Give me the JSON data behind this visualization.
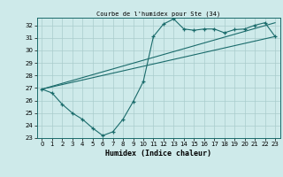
{
  "title": "Courbe de l'humidex pour Ste (34)",
  "xlabel": "Humidex (Indice chaleur)",
  "bg_color": "#ceeaea",
  "grid_color": "#aacccc",
  "line_color": "#1a6b6b",
  "xlim": [
    -0.5,
    23.5
  ],
  "ylim": [
    23,
    32.6
  ],
  "xticks": [
    0,
    1,
    2,
    3,
    4,
    5,
    6,
    7,
    8,
    9,
    10,
    11,
    12,
    13,
    14,
    15,
    16,
    17,
    18,
    19,
    20,
    21,
    22,
    23
  ],
  "yticks": [
    23,
    24,
    25,
    26,
    27,
    28,
    29,
    30,
    31,
    32
  ],
  "curve_x": [
    0,
    1,
    2,
    3,
    4,
    5,
    6,
    7,
    8,
    9,
    10,
    11,
    12,
    13,
    14,
    15,
    16,
    17,
    18,
    19,
    20,
    21,
    22,
    23
  ],
  "curve_y": [
    26.9,
    26.6,
    25.7,
    25.0,
    24.5,
    23.8,
    23.2,
    23.5,
    24.5,
    25.9,
    27.5,
    31.1,
    32.1,
    32.5,
    31.7,
    31.6,
    31.7,
    31.7,
    31.4,
    31.65,
    31.7,
    32.0,
    32.2,
    31.1
  ],
  "line1_x": [
    0,
    23
  ],
  "line1_y": [
    26.9,
    31.1
  ],
  "line2_x": [
    0,
    23
  ],
  "line2_y": [
    26.9,
    32.2
  ]
}
